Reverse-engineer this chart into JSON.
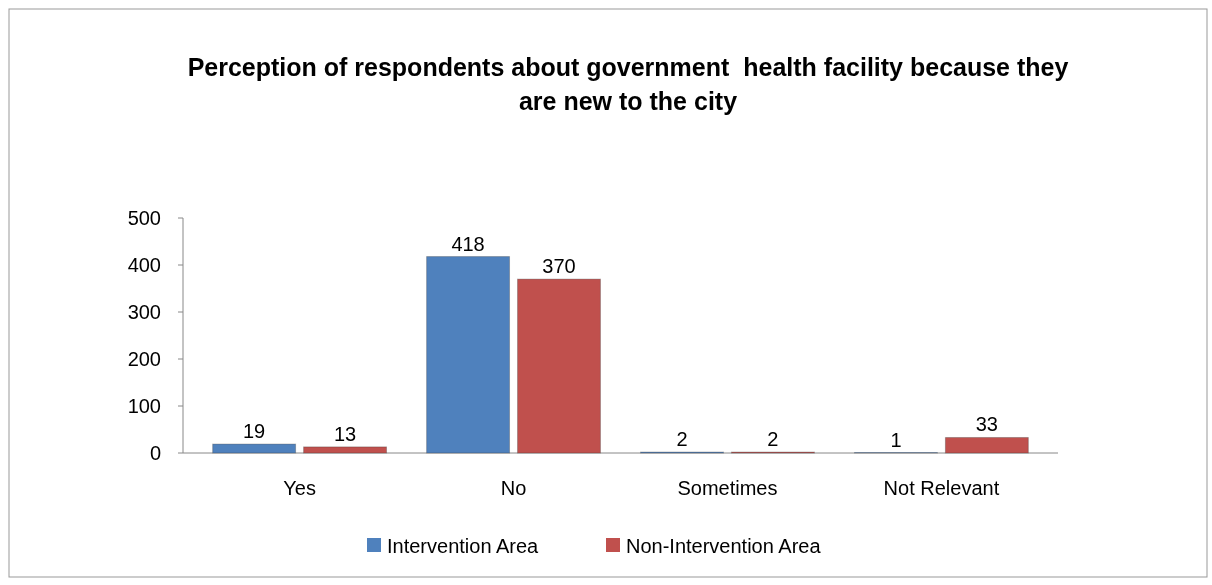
{
  "chart_data": {
    "type": "bar",
    "title": "Perception of respondents about government  health facility because they are new to the city",
    "categories": [
      "Yes",
      "No",
      "Sometimes",
      "Not Relevant"
    ],
    "series": [
      {
        "name": "Intervention Area",
        "color": "#4f81bd",
        "values": [
          19,
          418,
          2,
          1
        ]
      },
      {
        "name": "Non-Intervention Area",
        "color": "#c0504d",
        "values": [
          13,
          370,
          2,
          33
        ]
      }
    ],
    "ylim": [
      0,
      500
    ],
    "yticks": [
      0,
      100,
      200,
      300,
      400,
      500
    ],
    "data_labels": true,
    "legend": "bottom"
  }
}
